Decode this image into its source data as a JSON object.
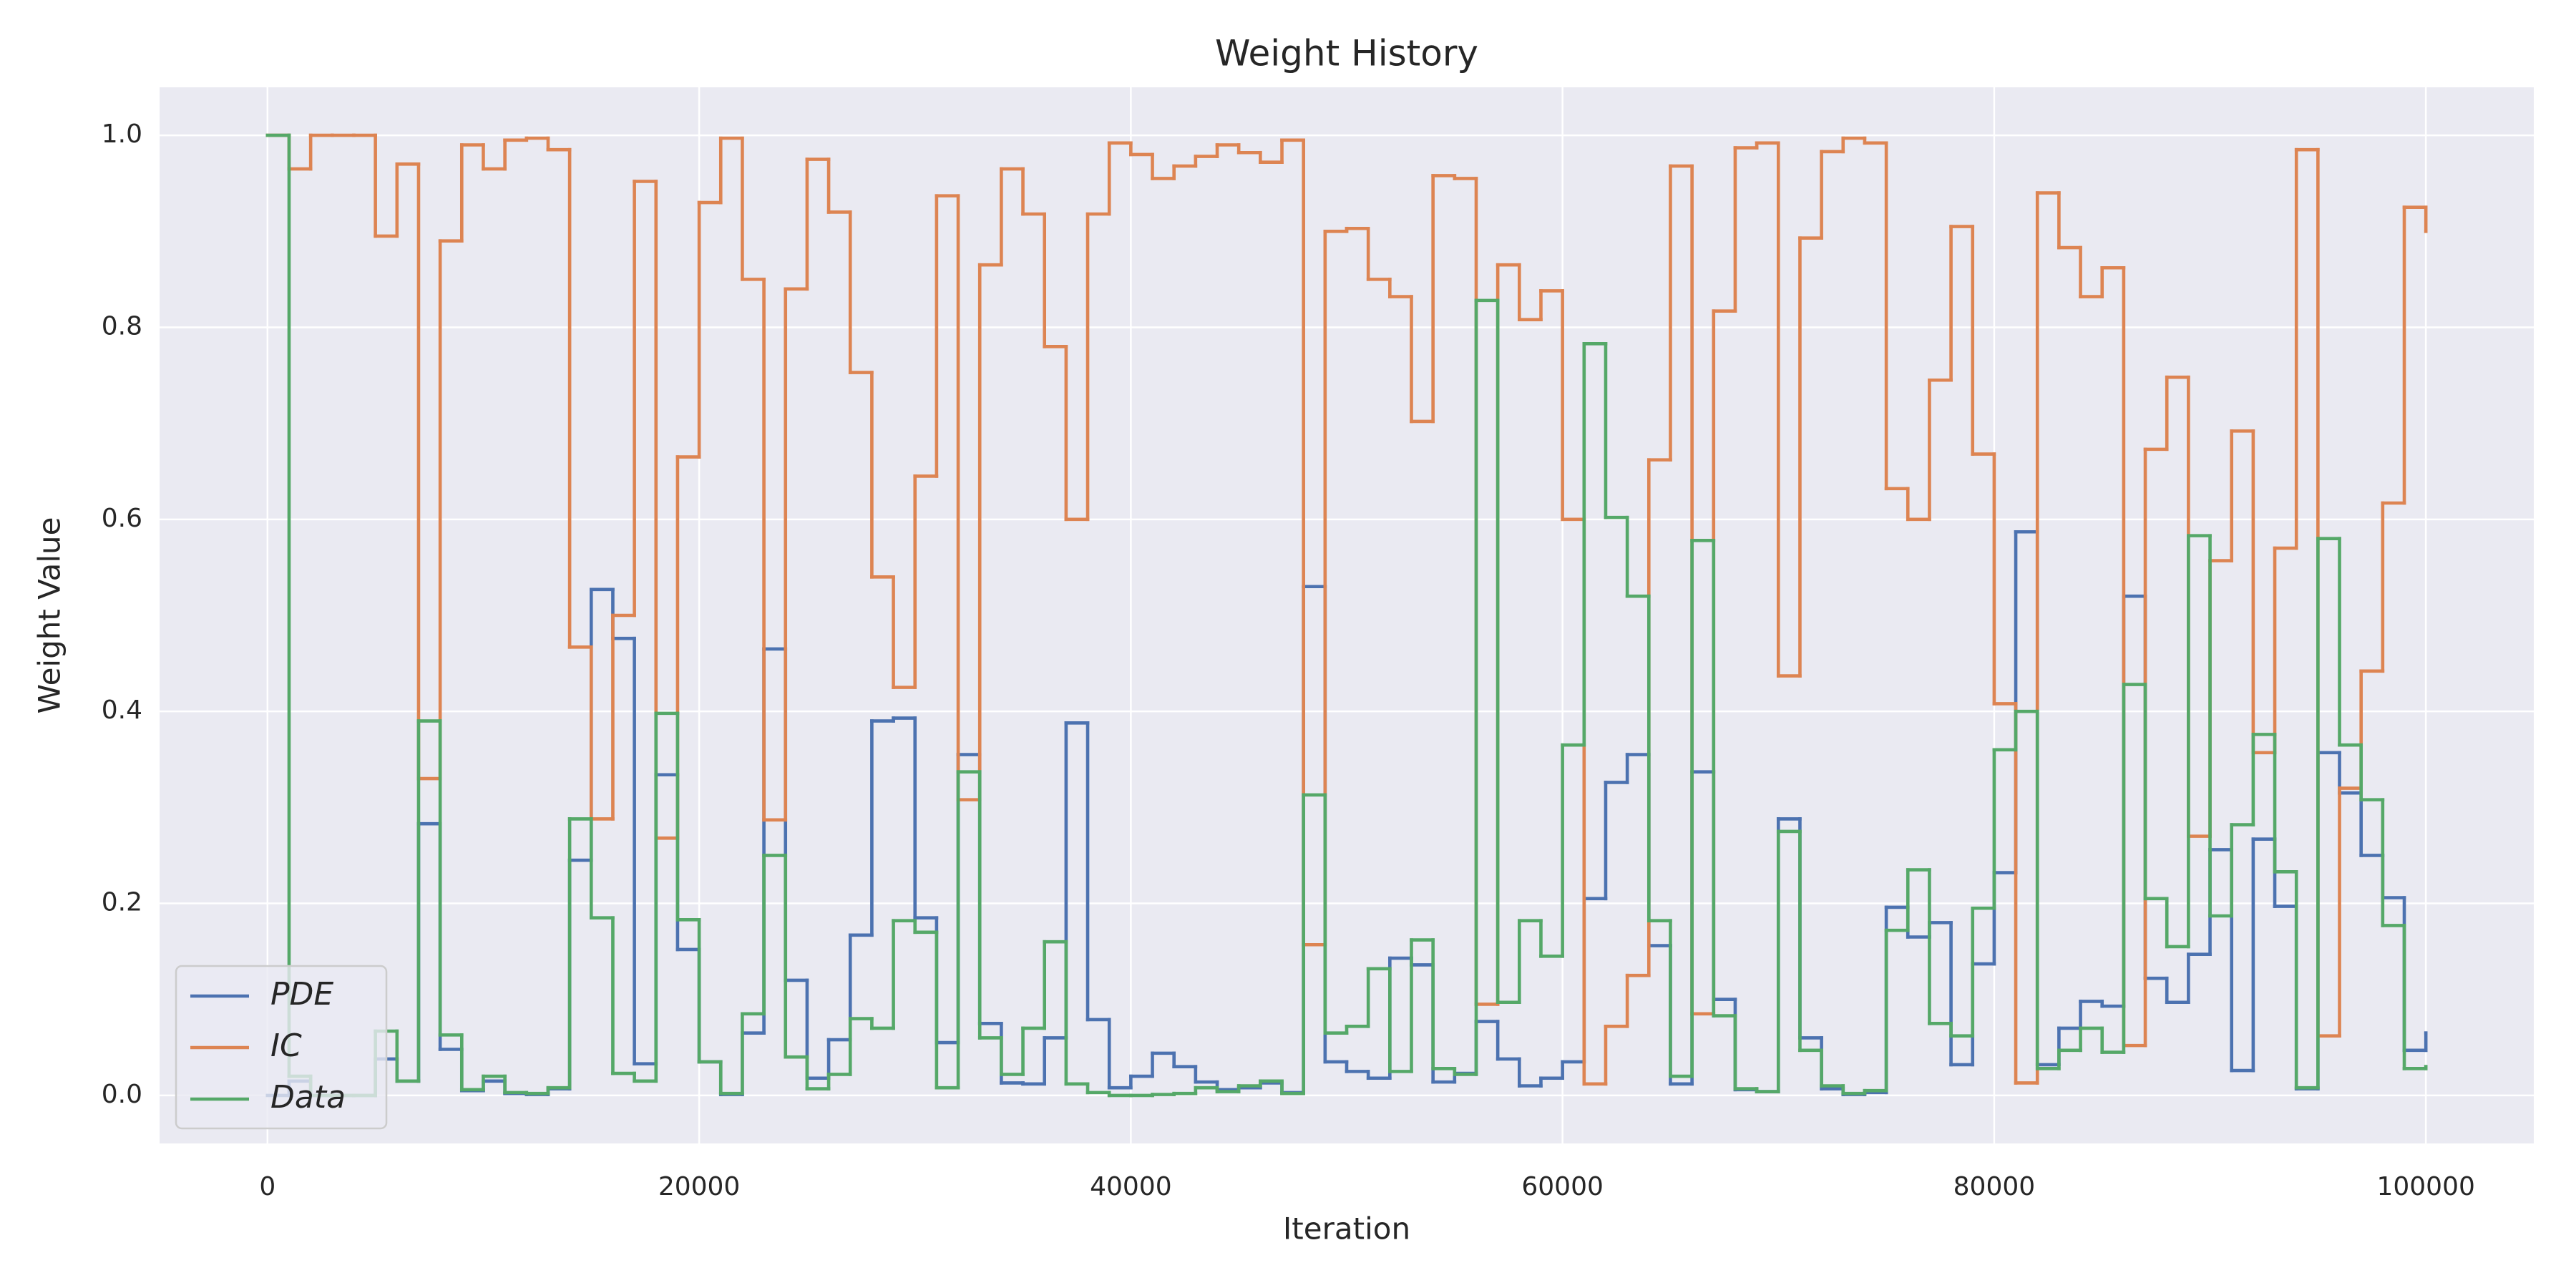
{
  "chart_data": {
    "type": "line",
    "drawstyle": "steps-post",
    "title": "Weight History",
    "x_label": "Iteration",
    "y_label": "Weight Value",
    "x": [
      0,
      1000,
      2000,
      3000,
      4000,
      5000,
      6000,
      7000,
      8000,
      9000,
      10000,
      11000,
      12000,
      13000,
      14000,
      15000,
      16000,
      17000,
      18000,
      19000,
      20000,
      21000,
      22000,
      23000,
      24000,
      25000,
      26000,
      27000,
      28000,
      29000,
      30000,
      31000,
      32000,
      33000,
      34000,
      35000,
      36000,
      37000,
      38000,
      39000,
      40000,
      41000,
      42000,
      43000,
      44000,
      45000,
      46000,
      47000,
      48000,
      49000,
      50000,
      51000,
      52000,
      53000,
      54000,
      55000,
      56000,
      57000,
      58000,
      59000,
      60000,
      61000,
      62000,
      63000,
      64000,
      65000,
      66000,
      67000,
      68000,
      69000,
      70000,
      71000,
      72000,
      73000,
      74000,
      75000,
      76000,
      77000,
      78000,
      79000,
      80000,
      81000,
      82000,
      83000,
      84000,
      85000,
      86000,
      87000,
      88000,
      89000,
      90000,
      91000,
      92000,
      93000,
      94000,
      95000,
      96000,
      97000,
      98000,
      99000,
      100000
    ],
    "series": [
      {
        "name": "PDE",
        "color": "#4c72b0",
        "values": [
          0.0,
          0.015,
          0.0,
          0.0,
          0.0,
          0.038,
          0.015,
          0.283,
          0.048,
          0.005,
          0.015,
          0.002,
          0.001,
          0.007,
          0.245,
          0.527,
          0.476,
          0.033,
          0.334,
          0.152,
          0.035,
          0.001,
          0.065,
          0.465,
          0.12,
          0.018,
          0.058,
          0.167,
          0.39,
          0.393,
          0.185,
          0.055,
          0.355,
          0.075,
          0.013,
          0.012,
          0.06,
          0.388,
          0.079,
          0.008,
          0.02,
          0.044,
          0.03,
          0.014,
          0.006,
          0.008,
          0.013,
          0.003,
          0.53,
          0.035,
          0.025,
          0.018,
          0.143,
          0.136,
          0.014,
          0.023,
          0.077,
          0.038,
          0.01,
          0.018,
          0.035,
          0.205,
          0.326,
          0.355,
          0.156,
          0.012,
          0.337,
          0.1,
          0.006,
          0.004,
          0.288,
          0.06,
          0.007,
          0.001,
          0.003,
          0.196,
          0.165,
          0.18,
          0.032,
          0.137,
          0.232,
          0.587,
          0.032,
          0.07,
          0.098,
          0.093,
          0.52,
          0.122,
          0.097,
          0.147,
          0.256,
          0.026,
          0.267,
          0.197,
          0.007,
          0.357,
          0.315,
          0.25,
          0.206,
          0.047,
          0.065
        ]
      },
      {
        "name": "IC",
        "color": "#dd8452",
        "values": [
          1.0,
          0.965,
          1.0,
          1.0,
          1.0,
          0.895,
          0.97,
          0.33,
          0.89,
          0.99,
          0.965,
          0.995,
          0.997,
          0.985,
          0.467,
          0.288,
          0.5,
          0.952,
          0.268,
          0.665,
          0.93,
          0.997,
          0.85,
          0.287,
          0.84,
          0.975,
          0.92,
          0.753,
          0.54,
          0.425,
          0.645,
          0.937,
          0.308,
          0.865,
          0.965,
          0.918,
          0.78,
          0.6,
          0.918,
          0.992,
          0.98,
          0.955,
          0.968,
          0.978,
          0.99,
          0.982,
          0.972,
          0.995,
          0.157,
          0.9,
          0.903,
          0.85,
          0.832,
          0.702,
          0.958,
          0.955,
          0.095,
          0.865,
          0.808,
          0.838,
          0.6,
          0.012,
          0.072,
          0.125,
          0.662,
          0.968,
          0.085,
          0.817,
          0.987,
          0.992,
          0.437,
          0.893,
          0.983,
          0.997,
          0.992,
          0.632,
          0.6,
          0.745,
          0.905,
          0.668,
          0.408,
          0.013,
          0.94,
          0.883,
          0.832,
          0.862,
          0.052,
          0.673,
          0.748,
          0.27,
          0.557,
          0.692,
          0.357,
          0.57,
          0.985,
          0.062,
          0.32,
          0.442,
          0.617,
          0.925,
          0.9
        ]
      },
      {
        "name": "Data",
        "color": "#55a868",
        "values": [
          1.0,
          0.02,
          0.0,
          0.0,
          0.0,
          0.067,
          0.015,
          0.39,
          0.063,
          0.006,
          0.02,
          0.003,
          0.002,
          0.008,
          0.288,
          0.185,
          0.023,
          0.015,
          0.398,
          0.183,
          0.035,
          0.002,
          0.085,
          0.25,
          0.04,
          0.007,
          0.022,
          0.08,
          0.07,
          0.182,
          0.17,
          0.008,
          0.337,
          0.06,
          0.022,
          0.07,
          0.16,
          0.012,
          0.003,
          0.0,
          0.0,
          0.001,
          0.002,
          0.008,
          0.004,
          0.01,
          0.015,
          0.002,
          0.313,
          0.065,
          0.072,
          0.132,
          0.025,
          0.162,
          0.028,
          0.022,
          0.828,
          0.097,
          0.182,
          0.145,
          0.365,
          0.783,
          0.602,
          0.52,
          0.182,
          0.02,
          0.578,
          0.083,
          0.007,
          0.004,
          0.275,
          0.047,
          0.01,
          0.002,
          0.005,
          0.172,
          0.235,
          0.075,
          0.062,
          0.195,
          0.36,
          0.4,
          0.028,
          0.047,
          0.07,
          0.045,
          0.428,
          0.205,
          0.155,
          0.583,
          0.187,
          0.282,
          0.376,
          0.233,
          0.008,
          0.58,
          0.365,
          0.308,
          0.177,
          0.028,
          0.03
        ]
      }
    ],
    "xlim": [
      -5000,
      105000
    ],
    "xticks": [
      0,
      20000,
      40000,
      60000,
      80000,
      100000
    ],
    "ylim": [
      -0.05,
      1.05
    ],
    "yticks": [
      {
        "value": 0,
        "label": "0.0"
      },
      0.2,
      0.4,
      0.6,
      0.8,
      {
        "value": 1,
        "label": "1.0"
      }
    ],
    "grid": true,
    "legend": "lower left"
  }
}
